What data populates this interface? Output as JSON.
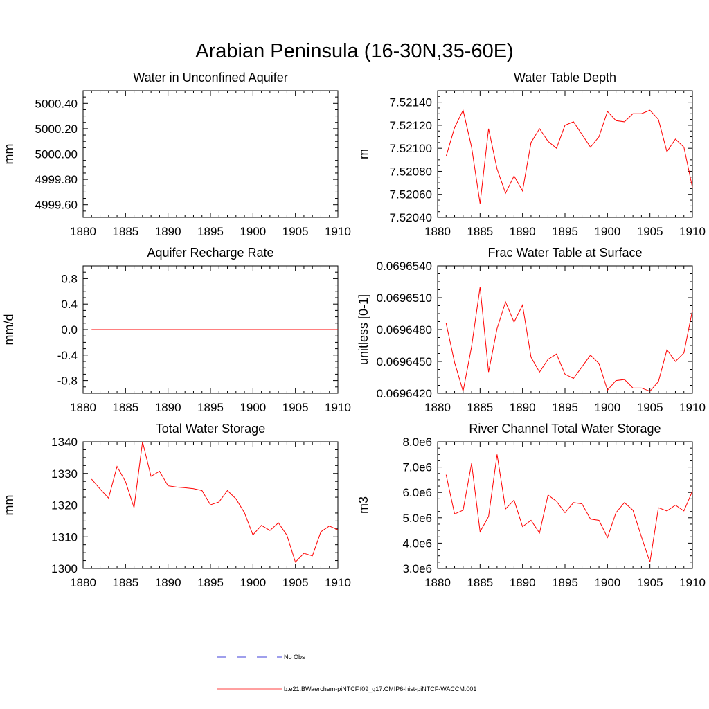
{
  "title": "Arabian Peninsula (16-30N,35-60E)",
  "colors": {
    "model": "#ff0000",
    "obs": "#0000cc",
    "axis": "#000000"
  },
  "legend": [
    {
      "label": "No Obs",
      "style": "dashed",
      "color": "#0000cc"
    },
    {
      "label": "b.e21.BWaerchem-piNTCF.f09_g17.CMIP6-hist-piNTCF-WACCM.001",
      "style": "solid",
      "color": "#ff0000"
    }
  ],
  "chart_data": [
    {
      "type": "line",
      "title": "Water in Unconfined Aquifer",
      "ylabel": "mm",
      "xlim": [
        1880,
        1910
      ],
      "ylim": [
        4999.5,
        5000.5
      ],
      "xticks": [
        "1880",
        "1885",
        "1890",
        "1895",
        "1900",
        "1905",
        "1910"
      ],
      "yticks": [
        {
          "v": 4999.6,
          "label": "4999.60"
        },
        {
          "v": 4999.8,
          "label": "4999.80"
        },
        {
          "v": 5000.0,
          "label": "5000.00"
        },
        {
          "v": 5000.2,
          "label": "5000.20"
        },
        {
          "v": 5000.4,
          "label": "5000.40"
        }
      ],
      "series": [
        {
          "x": [
            1881,
            1910
          ],
          "y": [
            5000.0,
            5000.0
          ]
        }
      ]
    },
    {
      "type": "line",
      "title": "Water Table Depth",
      "ylabel": "m",
      "xlim": [
        1880,
        1910
      ],
      "ylim": [
        7.5204,
        7.5215
      ],
      "xticks": [
        "1880",
        "1885",
        "1890",
        "1895",
        "1900",
        "1905",
        "1910"
      ],
      "yticks": [
        {
          "v": 7.5204,
          "label": "7.52040"
        },
        {
          "v": 7.5206,
          "label": "7.52060"
        },
        {
          "v": 7.5208,
          "label": "7.52080"
        },
        {
          "v": 7.521,
          "label": "7.52100"
        },
        {
          "v": 7.5212,
          "label": "7.52120"
        },
        {
          "v": 7.5214,
          "label": "7.52140"
        }
      ],
      "series": [
        {
          "x": [
            1881,
            1882,
            1883,
            1884,
            1885,
            1886,
            1887,
            1888,
            1889,
            1890,
            1891,
            1892,
            1893,
            1894,
            1895,
            1896,
            1897,
            1898,
            1899,
            1900,
            1901,
            1902,
            1903,
            1904,
            1905,
            1906,
            1907,
            1908,
            1909,
            1910
          ],
          "y": [
            7.52093,
            7.52118,
            7.52133,
            7.52101,
            7.52052,
            7.52117,
            7.52082,
            7.52061,
            7.52076,
            7.52063,
            7.52105,
            7.52117,
            7.52106,
            7.521,
            7.5212,
            7.52123,
            7.52112,
            7.52101,
            7.5211,
            7.52132,
            7.52124,
            7.52123,
            7.5213,
            7.5213,
            7.52133,
            7.52125,
            7.52097,
            7.52108,
            7.52101,
            7.52066
          ]
        }
      ]
    },
    {
      "type": "line",
      "title": "Aquifer Recharge Rate",
      "ylabel": "mm/d",
      "xlim": [
        1880,
        1910
      ],
      "ylim": [
        -1.0,
        1.0
      ],
      "xticks": [
        "1880",
        "1885",
        "1890",
        "1895",
        "1900",
        "1905",
        "1910"
      ],
      "yticks": [
        {
          "v": -0.8,
          "label": "-0.8"
        },
        {
          "v": -0.4,
          "label": "-0.4"
        },
        {
          "v": 0.0,
          "label": "0.0"
        },
        {
          "v": 0.4,
          "label": "0.4"
        },
        {
          "v": 0.8,
          "label": "0.8"
        }
      ],
      "series": [
        {
          "x": [
            1881,
            1910
          ],
          "y": [
            0.0,
            0.0
          ]
        }
      ]
    },
    {
      "type": "line",
      "title": "Frac Water Table at Surface",
      "ylabel": "unitless [0-1]",
      "xlim": [
        1880,
        1910
      ],
      "ylim": [
        0.069642,
        0.069654
      ],
      "xticks": [
        "1880",
        "1885",
        "1890",
        "1895",
        "1900",
        "1905",
        "1910"
      ],
      "yticks": [
        {
          "v": 0.069642,
          "label": "0.0696420"
        },
        {
          "v": 0.069645,
          "label": "0.0696450"
        },
        {
          "v": 0.069648,
          "label": "0.0696480"
        },
        {
          "v": 0.069651,
          "label": "0.0696510"
        },
        {
          "v": 0.069654,
          "label": "0.0696540"
        }
      ],
      "series": [
        {
          "x": [
            1881,
            1882,
            1883,
            1884,
            1885,
            1886,
            1887,
            1888,
            1889,
            1890,
            1891,
            1892,
            1893,
            1894,
            1895,
            1896,
            1897,
            1898,
            1899,
            1900,
            1901,
            1902,
            1903,
            1904,
            1905,
            1906,
            1907,
            1908,
            1909,
            1910
          ],
          "y": [
            0.0696486,
            0.0696449,
            0.0696422,
            0.0696464,
            0.069652,
            0.069644,
            0.0696481,
            0.0696506,
            0.0696487,
            0.0696503,
            0.0696454,
            0.069644,
            0.0696452,
            0.0696457,
            0.0696438,
            0.0696434,
            0.0696445,
            0.0696456,
            0.0696448,
            0.0696423,
            0.0696432,
            0.0696433,
            0.0696425,
            0.0696425,
            0.0696422,
            0.0696431,
            0.0696461,
            0.069645,
            0.0696458,
            0.0696498
          ]
        }
      ]
    },
    {
      "type": "line",
      "title": "Total Water Storage",
      "ylabel": "mm",
      "xlim": [
        1880,
        1910
      ],
      "ylim": [
        1300,
        1340
      ],
      "xticks": [
        "1880",
        "1885",
        "1890",
        "1895",
        "1900",
        "1905",
        "1910"
      ],
      "yticks": [
        {
          "v": 1300,
          "label": "1300"
        },
        {
          "v": 1310,
          "label": "1310"
        },
        {
          "v": 1320,
          "label": "1320"
        },
        {
          "v": 1330,
          "label": "1330"
        },
        {
          "v": 1340,
          "label": "1340"
        }
      ],
      "series": [
        {
          "x": [
            1881,
            1882,
            1883,
            1884,
            1885,
            1886,
            1887,
            1888,
            1889,
            1890,
            1891,
            1892,
            1893,
            1894,
            1895,
            1896,
            1897,
            1898,
            1899,
            1900,
            1901,
            1902,
            1903,
            1904,
            1905,
            1906,
            1907,
            1908,
            1909,
            1910
          ],
          "y": [
            1328.2,
            1325.1,
            1322.2,
            1332.2,
            1327.4,
            1319.2,
            1340.0,
            1329.1,
            1330.7,
            1326.1,
            1325.7,
            1325.5,
            1325.2,
            1324.6,
            1320.1,
            1321.0,
            1324.6,
            1322.0,
            1317.6,
            1310.6,
            1313.6,
            1312.0,
            1314.4,
            1310.5,
            1302.0,
            1304.8,
            1304.0,
            1311.6,
            1313.4,
            1312.2
          ]
        }
      ]
    },
    {
      "type": "line",
      "title": "River Channel Total Water Storage",
      "ylabel": "m3",
      "xlim": [
        1880,
        1910
      ],
      "ylim": [
        3000000,
        8000000
      ],
      "xticks": [
        "1880",
        "1885",
        "1890",
        "1895",
        "1900",
        "1905",
        "1910"
      ],
      "yticks": [
        {
          "v": 3000000,
          "label": "3.0e6"
        },
        {
          "v": 4000000,
          "label": "4.0e6"
        },
        {
          "v": 5000000,
          "label": "5.0e6"
        },
        {
          "v": 6000000,
          "label": "6.0e6"
        },
        {
          "v": 7000000,
          "label": "7.0e6"
        },
        {
          "v": 8000000,
          "label": "8.0e6"
        }
      ],
      "series": [
        {
          "x": [
            1881,
            1882,
            1883,
            1884,
            1885,
            1886,
            1887,
            1888,
            1889,
            1890,
            1891,
            1892,
            1893,
            1894,
            1895,
            1896,
            1897,
            1898,
            1899,
            1900,
            1901,
            1902,
            1903,
            1904,
            1905,
            1906,
            1907,
            1908,
            1909,
            1910
          ],
          "y": [
            6700000,
            5150000,
            5300000,
            7150000,
            4450000,
            5050000,
            7500000,
            5350000,
            5700000,
            4650000,
            4900000,
            4400000,
            5900000,
            5650000,
            5200000,
            5600000,
            5550000,
            4950000,
            4900000,
            4220000,
            5200000,
            5600000,
            5300000,
            4250000,
            3250000,
            5400000,
            5270000,
            5500000,
            5270000,
            6050000
          ]
        }
      ]
    }
  ]
}
